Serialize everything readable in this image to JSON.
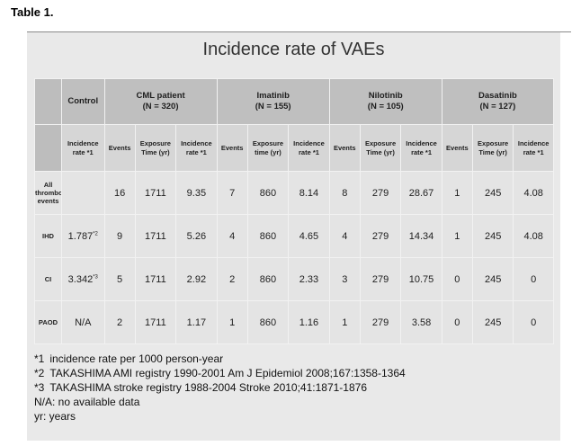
{
  "doc_title": "Table 1.",
  "figure": {
    "title": "Incidence rate of VAEs",
    "groups": [
      {
        "name": "Control",
        "n": ""
      },
      {
        "name": "CML patient",
        "n": "(N = 320)"
      },
      {
        "name": "Imatinib",
        "n": "(N = 155)"
      },
      {
        "name": "Nilotinib",
        "n": "(N = 105)"
      },
      {
        "name": "Dasatinib",
        "n": "(N = 127)"
      }
    ],
    "subheaders": {
      "control": "Incidence rate *1",
      "cml": [
        "Events",
        "Exposure Time (yr)",
        "Incidence rate *1"
      ],
      "imatinib": [
        "Events",
        "Exposure time (yr)",
        "Incidence rate *1"
      ],
      "nilotinib": [
        "Events",
        "Exposure Time (yr)",
        "Incidence rate *1"
      ],
      "dasatinib": [
        "Events",
        "Exposure Time (yr)",
        "Incidence rate *1"
      ]
    },
    "rows": [
      {
        "label": "All thrombotic events",
        "control": "",
        "control_sup": "",
        "cml": [
          "16",
          "1711",
          "9.35"
        ],
        "imatinib": [
          "7",
          "860",
          "8.14"
        ],
        "nilotinib": [
          "8",
          "279",
          "28.67"
        ],
        "dasatinib": [
          "1",
          "245",
          "4.08"
        ]
      },
      {
        "label": "IHD",
        "control": "1.787",
        "control_sup": "*2",
        "cml": [
          "9",
          "1711",
          "5.26"
        ],
        "imatinib": [
          "4",
          "860",
          "4.65"
        ],
        "nilotinib": [
          "4",
          "279",
          "14.34"
        ],
        "dasatinib": [
          "1",
          "245",
          "4.08"
        ]
      },
      {
        "label": "CI",
        "control": "3.342",
        "control_sup": "*3",
        "cml": [
          "5",
          "1711",
          "2.92"
        ],
        "imatinib": [
          "2",
          "860",
          "2.33"
        ],
        "nilotinib": [
          "3",
          "279",
          "10.75"
        ],
        "dasatinib": [
          "0",
          "245",
          "0"
        ]
      },
      {
        "label": "PAOD",
        "control": "N/A",
        "control_sup": "",
        "cml": [
          "2",
          "1711",
          "1.17"
        ],
        "imatinib": [
          "1",
          "860",
          "1.16"
        ],
        "nilotinib": [
          "1",
          "279",
          "3.58"
        ],
        "dasatinib": [
          "0",
          "245",
          "0"
        ]
      }
    ],
    "notes": [
      {
        "mark": "*1",
        "text": "incidence rate per 1000 person-year"
      },
      {
        "mark": "*2",
        "text": "TAKASHIMA  AMI registry 1990-2001  Am J Epidemiol 2008;167:1358-1364"
      },
      {
        "mark": "*3",
        "text": "TAKASHIMA  stroke registry 1988-2004   Stroke 2010;41:1871-1876"
      },
      {
        "mark": "",
        "text": "N/A: no available  data"
      },
      {
        "mark": "",
        "text": "yr: years"
      }
    ]
  }
}
